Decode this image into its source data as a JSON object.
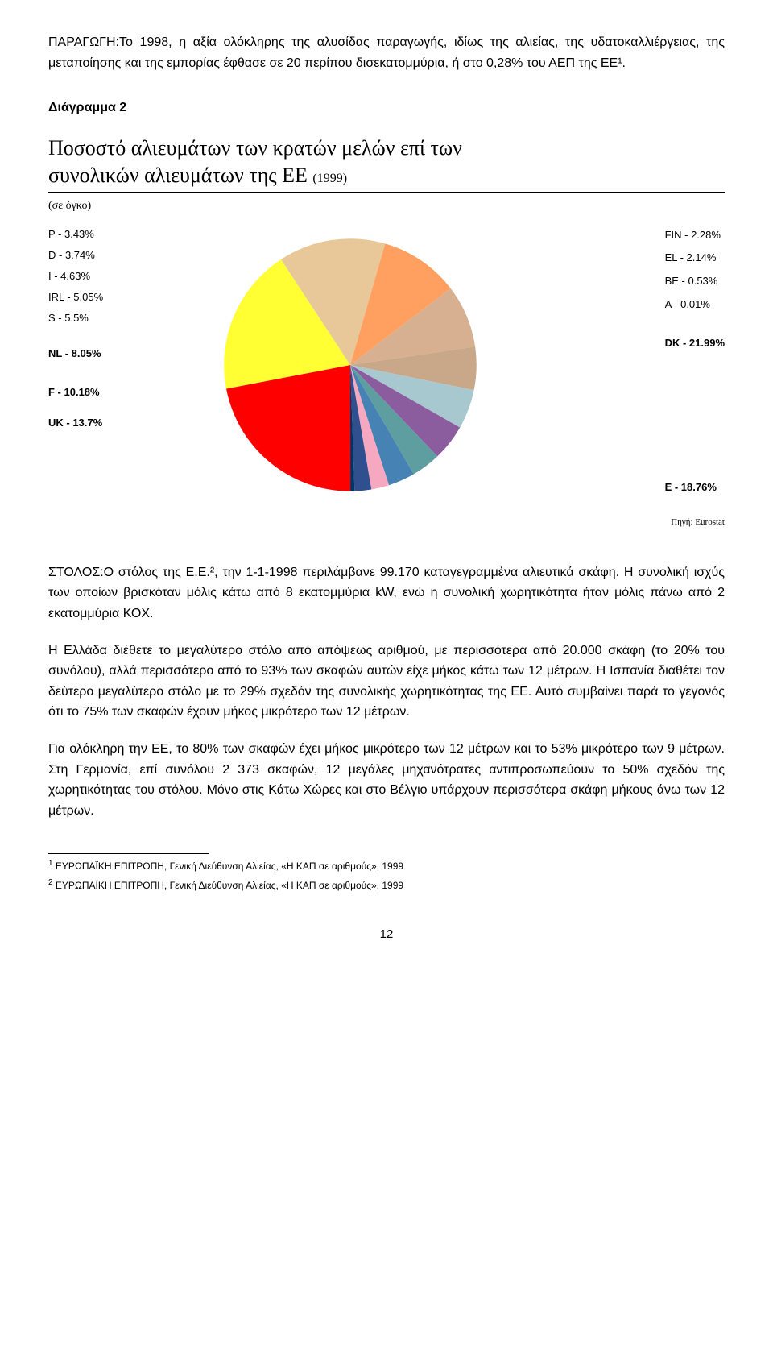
{
  "paragraphs": {
    "p1": "ΠΑΡΑΓΩΓΗ:Το 1998, η αξία ολόκληρης της αλυσίδας παραγωγής, ιδίως της αλιείας, της υδατοκαλλιέργειας, της μεταποίησης και της εμπορίας έφθασε σε 20 περίπου δισεκατομμύρια, ή στο 0,28% του ΑΕΠ της ΕΕ¹.",
    "diagram_label": "Διάγραμμα 2",
    "p2": "ΣΤΟΛΟΣ:Ο στόλος της Ε.Ε.², την 1-1-1998 περιλάμβανε 99.170 καταγεγραμμένα αλιευτικά σκάφη. Η συνολική ισχύς των οποίων βρισκόταν μόλις κάτω από 8 εκατομμύρια kW, ενώ η συνολική χωρητικότητα ήταν μόλις πάνω από 2 εκατομμύρια ΚΟΧ.",
    "p3": "Η Ελλάδα διέθετε το μεγαλύτερο στόλο από απόψεως αριθμού, με περισσότερα από 20.000 σκάφη (το 20% του συνόλου), αλλά περισσότερο από το 93% των σκαφών αυτών είχε μήκος κάτω των 12 μέτρων. Η Ισπανία διαθέτει τον δεύτερο μεγαλύτερο στόλο με το 29% σχεδόν της συνολικής χωρητικότητας της ΕΕ. Αυτό συμβαίνει παρά το γεγονός ότι το 75% των σκαφών έχουν μήκος μικρότερο των 12 μέτρων.",
    "p4": "Για ολόκληρη την ΕΕ, το 80% των σκαφών έχει μήκος μικρότερο των 12 μέτρων και το 53% μικρότερο των 9 μέτρων. Στη Γερμανία, επί συνόλου 2 373 σκαφών, 12 μεγάλες μηχανότρατες αντιπροσωπεύουν το 50% σχεδόν της χωρητικότητας του στόλου. Μόνο στις Κάτω Χώρες και στο Βέλγιο υπάρχουν περισσότερα σκάφη μήκους άνω των 12 μέτρων."
  },
  "chart": {
    "title_line1": "Ποσοστό αλιευμάτων των κρατών μελών επί των",
    "title_line2_a": "συνολικών αλιευμάτων της ΕΕ",
    "title_year": "(1999)",
    "subtitle": "(σε όγκο)",
    "left_labels": [
      {
        "k": "P",
        "v": "3.43%",
        "bold": false
      },
      {
        "k": "D",
        "v": "3.74%",
        "bold": false
      },
      {
        "k": "I",
        "v": "4.63%",
        "bold": false
      },
      {
        "k": "IRL",
        "v": "5.05%",
        "bold": false
      },
      {
        "k": "S",
        "v": "5.5%",
        "bold": false
      },
      {
        "k": "NL",
        "v": "8.05%",
        "bold": true
      },
      {
        "k": "F",
        "v": "10.18%",
        "bold": true
      },
      {
        "k": "UK",
        "v": "13.7%",
        "bold": true
      }
    ],
    "right_labels": [
      {
        "k": "FIN",
        "v": "2.28%",
        "bold": false
      },
      {
        "k": "EL",
        "v": "2.14%",
        "bold": false
      },
      {
        "k": "BE",
        "v": "0.53%",
        "bold": false
      },
      {
        "k": "A",
        "v": "0.01%",
        "bold": false
      },
      {
        "k": "DK",
        "v": "21.99%",
        "bold": true
      },
      {
        "k": "E",
        "v": "18.76%",
        "bold": true
      }
    ],
    "source": "Πηγή: Eurostat",
    "slices": [
      {
        "label": "DK",
        "value": 21.99,
        "color": "#ff0000"
      },
      {
        "label": "E",
        "value": 18.76,
        "color": "#ffff33"
      },
      {
        "label": "UK",
        "value": 13.7,
        "color": "#e8c898"
      },
      {
        "label": "F",
        "value": 10.18,
        "color": "#ffa060"
      },
      {
        "label": "NL",
        "value": 8.05,
        "color": "#d6b090"
      },
      {
        "label": "S",
        "value": 5.5,
        "color": "#c8a888"
      },
      {
        "label": "IRL",
        "value": 5.05,
        "color": "#a8c8d0"
      },
      {
        "label": "I",
        "value": 4.63,
        "color": "#8b5c9e"
      },
      {
        "label": "D",
        "value": 3.74,
        "color": "#5f9ea0"
      },
      {
        "label": "P",
        "value": 3.43,
        "color": "#4682b4"
      },
      {
        "label": "FIN",
        "value": 2.28,
        "color": "#f5a8c0"
      },
      {
        "label": "EL",
        "value": 2.14,
        "color": "#2f4f8f"
      },
      {
        "label": "BE",
        "value": 0.53,
        "color": "#003366"
      },
      {
        "label": "A",
        "value": 0.01,
        "color": "#001830"
      }
    ],
    "start_angle_deg": 90
  },
  "footnotes": {
    "f1": "ΕΥΡΩΠΑΪΚΗ ΕΠΙΤΡΟΠΗ, Γενική Διεύθυνση Αλιείας, «Η ΚΑΠ σε αριθμούς», 1999",
    "f2": "ΕΥΡΩΠΑΪΚΗ ΕΠΙΤΡΟΠΗ, Γενική Διεύθυνση Αλιείας, «Η ΚΑΠ σε αριθμούς», 1999"
  },
  "page_number": "12"
}
